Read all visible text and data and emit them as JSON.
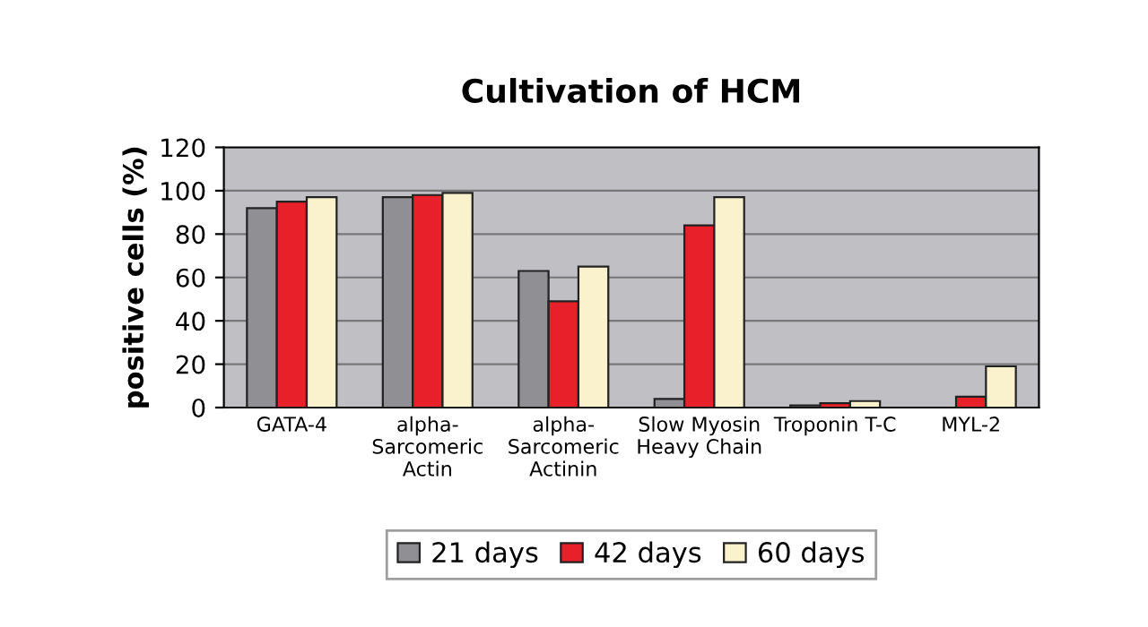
{
  "chart_data": {
    "type": "bar",
    "title": "Cultivation of HCM",
    "ylabel": "positive cells (%)",
    "categories": [
      "GATA-4",
      "alpha-Sarcomeric Actin",
      "alpha-Sarcomeric Actinin",
      "Slow Myosin Heavy Chain",
      "Troponin T-C",
      "MYL-2"
    ],
    "series": [
      {
        "name": "21 days",
        "color": "#909094",
        "values": [
          92,
          97,
          63,
          4,
          1,
          null
        ]
      },
      {
        "name": "42 days",
        "color": "#e8202a",
        "values": [
          95,
          98,
          49,
          84,
          2,
          5
        ]
      },
      {
        "name": "60 days",
        "color": "#faf2cc",
        "values": [
          97,
          99,
          65,
          97,
          3,
          19
        ]
      }
    ],
    "ylim": [
      0,
      120
    ],
    "yticks": [
      0,
      20,
      40,
      60,
      80,
      100,
      120
    ],
    "grid": "y",
    "legend": "bottom"
  }
}
